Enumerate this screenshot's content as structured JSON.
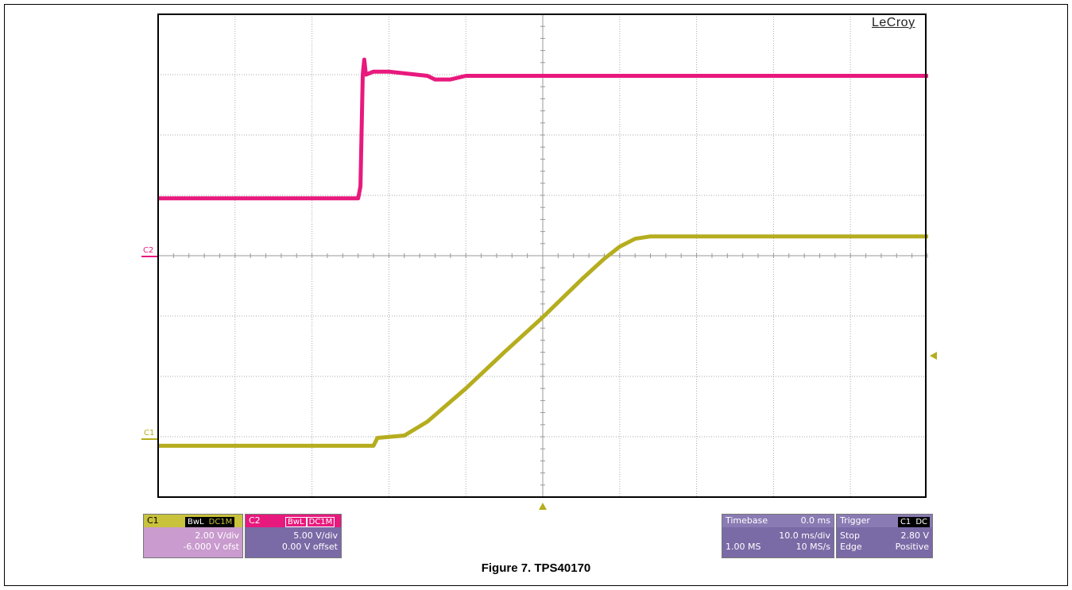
{
  "brand": "LeCroy",
  "figure_caption": "Figure 7. TPS40170",
  "colors": {
    "c1": "#b5ad1e",
    "c2": "#e8197d",
    "grid": "#aaaaaa"
  },
  "markers": {
    "c1": "C1",
    "c2": "C2"
  },
  "channels": {
    "c1": {
      "name": "C1",
      "tags": [
        "BwL",
        "DC1M"
      ],
      "scale": "2.00 V/div",
      "offset": "-6.000 V ofst"
    },
    "c2": {
      "name": "C2",
      "tags": [
        "BwL",
        "DC1M"
      ],
      "scale": "5.00 V/div",
      "offset": "0.00 V offset"
    }
  },
  "timebase": {
    "label": "Timebase",
    "position": "0.0 ms",
    "scale": "10.0 ms/div",
    "record": "1.00 MS",
    "rate": "10 MS/s"
  },
  "trigger": {
    "label": "Trigger",
    "tags": [
      "C1",
      "DC"
    ],
    "mode": "Stop",
    "level": "2.80 V",
    "type": "Edge",
    "slope": "Positive"
  },
  "chart_data": {
    "type": "line",
    "x_divisions": 10,
    "y_divisions": 8,
    "x_unit": "div",
    "y_unit": "div",
    "series": [
      {
        "name": "C2",
        "x": [
          0,
          2.6,
          2.63,
          2.66,
          2.68,
          2.7,
          2.8,
          3.0,
          3.5,
          3.6,
          3.8,
          4.0,
          5.0,
          7.0,
          10.0
        ],
        "y": [
          4.95,
          4.95,
          5.15,
          7.0,
          7.25,
          7.0,
          7.05,
          7.05,
          6.98,
          6.92,
          6.92,
          6.98,
          6.98,
          6.98,
          6.98
        ]
      },
      {
        "name": "C1",
        "x": [
          0,
          2.8,
          2.85,
          3.2,
          3.5,
          4.0,
          4.5,
          5.0,
          5.5,
          5.8,
          6.0,
          6.2,
          6.4,
          10.0
        ],
        "y": [
          0.85,
          0.85,
          0.98,
          1.02,
          1.25,
          1.8,
          2.4,
          2.98,
          3.6,
          3.95,
          4.15,
          4.28,
          4.32,
          4.32
        ]
      }
    ]
  }
}
